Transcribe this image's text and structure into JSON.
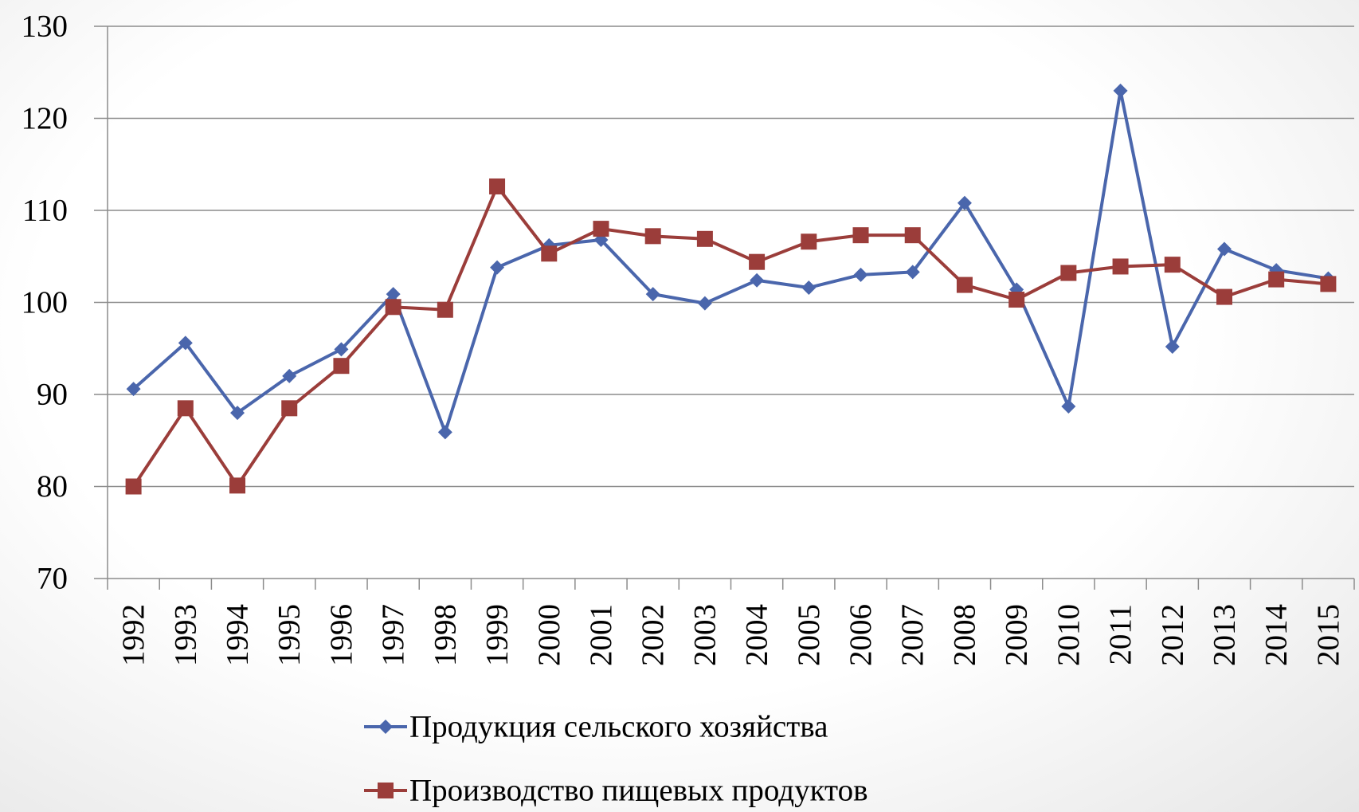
{
  "chart_data": {
    "type": "line",
    "categories": [
      "1992",
      "1993",
      "1994",
      "1995",
      "1996",
      "1997",
      "1998",
      "1999",
      "2000",
      "2001",
      "2002",
      "2003",
      "2004",
      "2005",
      "2006",
      "2007",
      "2008",
      "2009",
      "2010",
      "2011",
      "2012",
      "2013",
      "2014",
      "2015"
    ],
    "series": [
      {
        "name": "Продукция сельского хозяйства",
        "color": "#4a66ac",
        "marker": "diamond",
        "values": [
          90.6,
          95.6,
          88,
          92,
          94.9,
          100.9,
          85.9,
          103.8,
          106.2,
          106.8,
          100.9,
          99.9,
          102.4,
          101.6,
          103,
          103.3,
          110.8,
          101.4,
          88.7,
          123,
          95.2,
          105.8,
          103.5,
          102.6
        ]
      },
      {
        "name": "Производство пищевых продуктов",
        "color": "#9b3d3a",
        "marker": "square",
        "values": [
          80,
          88.5,
          80.1,
          88.5,
          93.1,
          99.5,
          99.2,
          112.6,
          105.3,
          108,
          107.2,
          106.9,
          104.4,
          106.6,
          107.3,
          107.3,
          101.9,
          100.3,
          103.2,
          103.9,
          104.1,
          100.6,
          102.5,
          102
        ]
      }
    ],
    "ylim": [
      70,
      130
    ],
    "yticks": [
      70,
      80,
      90,
      100,
      110,
      120,
      130
    ],
    "grid": true,
    "legend": "bottom"
  }
}
